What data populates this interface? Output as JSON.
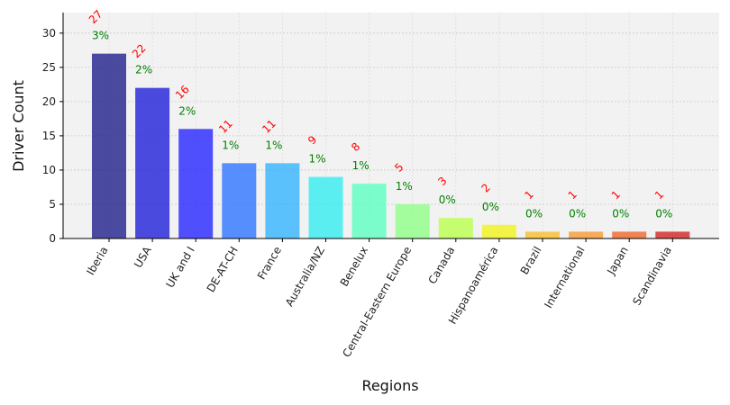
{
  "chart_data": {
    "type": "bar",
    "title": "",
    "xlabel": "Regions",
    "ylabel": "Driver Count",
    "ylim": [
      0,
      33
    ],
    "yticks": [
      0,
      5,
      10,
      15,
      20,
      25,
      30
    ],
    "grid": true,
    "categories": [
      "Iberia",
      "USA",
      "UK and I",
      "DE-AT-CH",
      "France",
      "Australia/NZ",
      "Benelux",
      "Central-Eastern Europe",
      "Canada",
      "Hispanoamérica",
      "Brazil",
      "International",
      "Japan",
      "Scandinavia"
    ],
    "values": [
      27,
      22,
      16,
      11,
      11,
      9,
      8,
      5,
      3,
      2,
      1,
      1,
      1,
      1
    ],
    "percent_labels": [
      "3%",
      "2%",
      "2%",
      "1%",
      "1%",
      "1%",
      "1%",
      "1%",
      "0%",
      "0%",
      "0%",
      "0%",
      "0%",
      "0%"
    ],
    "colors": [
      "#1f1f8c",
      "#1f1fd8",
      "#2626ff",
      "#2f74ff",
      "#34b4ff",
      "#33ecf0",
      "#5bffc1",
      "#8fff86",
      "#baff4e",
      "#f0f21a",
      "#f7be2a",
      "#f69a32",
      "#f0662a",
      "#d2241f"
    ],
    "bar_opacity": 0.8,
    "plot_background": "#f2f2f2",
    "count_label_color": "#ff0000",
    "percent_label_color": "#008000"
  }
}
